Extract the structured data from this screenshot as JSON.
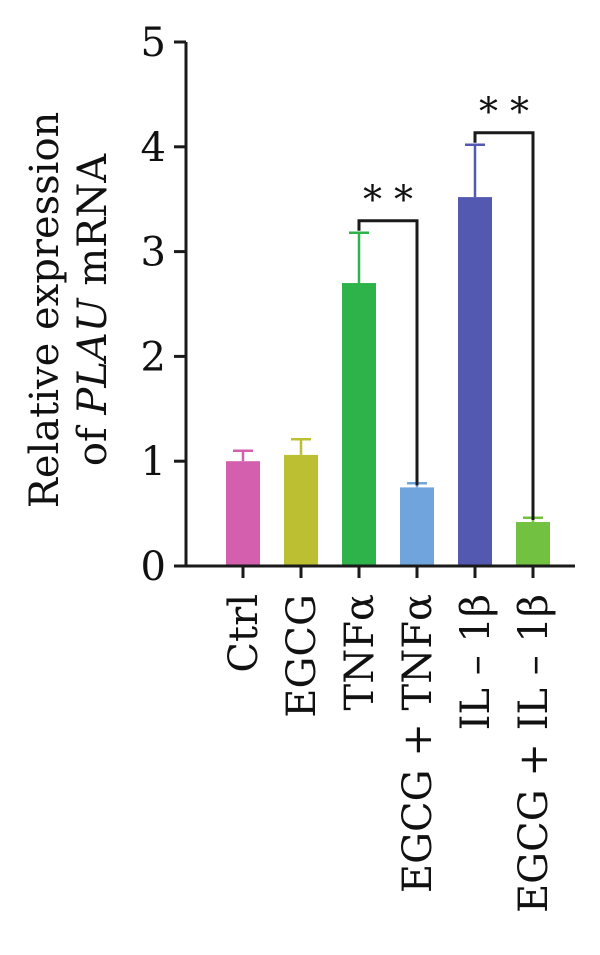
{
  "chart_data": {
    "type": "bar",
    "categories": [
      "Ctrl",
      "EGCG",
      "TNFα",
      "EGCG + TNFα",
      "IL – 1β",
      "EGCG + IL – 1β"
    ],
    "values": [
      1.0,
      1.06,
      2.7,
      0.75,
      3.52,
      0.42
    ],
    "errors": [
      0.1,
      0.15,
      0.48,
      0.04,
      0.5,
      0.04
    ],
    "colors": [
      "#d35fae",
      "#bdbf33",
      "#2db34a",
      "#6fa5dc",
      "#5358b0",
      "#72c140"
    ],
    "ylabel": {
      "line1": "Relative expression",
      "line2_prefix": "of ",
      "line2_italic": "PLAU",
      "line2_suffix": " mRNA"
    },
    "ylim": [
      0,
      5
    ],
    "yticks": [
      0,
      1,
      2,
      3,
      4,
      5
    ],
    "significance": [
      {
        "from": 2,
        "to": 3,
        "label": "* *"
      },
      {
        "from": 4,
        "to": 5,
        "label": "* *"
      }
    ]
  }
}
